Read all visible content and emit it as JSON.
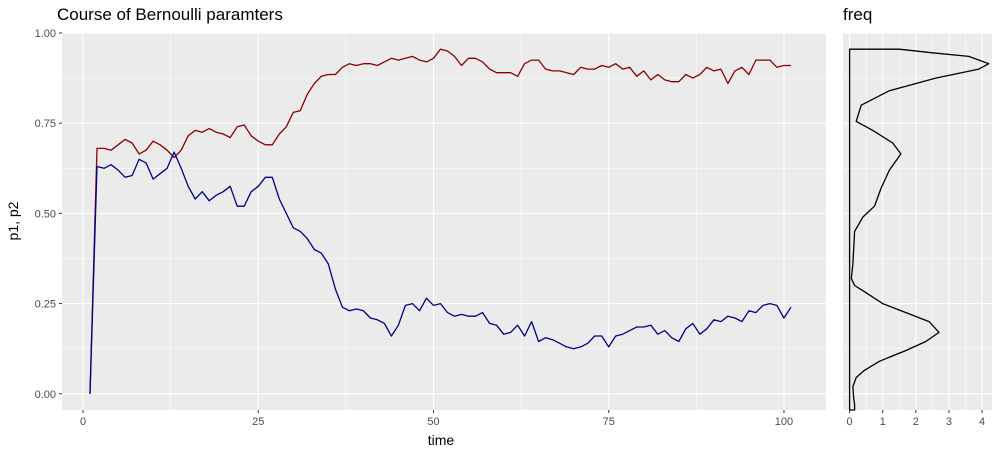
{
  "chart_data": [
    {
      "type": "line",
      "title": "Course of Bernoulli paramters",
      "xlabel": "time",
      "ylabel": "p1, p2",
      "xlim": [
        -3,
        106
      ],
      "ylim": [
        -0.045,
        1.0
      ],
      "x_ticks": [
        0,
        25,
        50,
        75,
        100
      ],
      "x_tick_labels": [
        "0",
        "25",
        "50",
        "75",
        "100"
      ],
      "y_ticks": [
        0,
        0.25,
        0.5,
        0.75,
        1.0
      ],
      "y_tick_labels": [
        "0.00",
        "0.25",
        "0.50",
        "0.75",
        "1.00"
      ],
      "grid": true,
      "x": [
        1,
        2,
        3,
        4,
        5,
        6,
        7,
        8,
        9,
        10,
        11,
        12,
        13,
        14,
        15,
        16,
        17,
        18,
        19,
        20,
        21,
        22,
        23,
        24,
        25,
        26,
        27,
        28,
        29,
        30,
        31,
        32,
        33,
        34,
        35,
        36,
        37,
        38,
        39,
        40,
        41,
        42,
        43,
        44,
        45,
        46,
        47,
        48,
        49,
        50,
        51,
        52,
        53,
        54,
        55,
        56,
        57,
        58,
        59,
        60,
        61,
        62,
        63,
        64,
        65,
        66,
        67,
        68,
        69,
        70,
        71,
        72,
        73,
        74,
        75,
        76,
        77,
        78,
        79,
        80,
        81,
        82,
        83,
        84,
        85,
        86,
        87,
        88,
        89,
        90,
        91,
        92,
        93,
        94,
        95,
        96,
        97,
        98,
        99,
        100,
        101
      ],
      "series": [
        {
          "color": "#8b0000",
          "values": [
            0.0,
            0.68,
            0.68,
            0.675,
            0.69,
            0.705,
            0.695,
            0.665,
            0.675,
            0.7,
            0.69,
            0.675,
            0.655,
            0.675,
            0.715,
            0.73,
            0.725,
            0.735,
            0.725,
            0.72,
            0.71,
            0.74,
            0.745,
            0.715,
            0.7,
            0.69,
            0.69,
            0.72,
            0.74,
            0.78,
            0.785,
            0.83,
            0.86,
            0.88,
            0.885,
            0.885,
            0.905,
            0.915,
            0.91,
            0.915,
            0.915,
            0.91,
            0.92,
            0.93,
            0.925,
            0.93,
            0.935,
            0.925,
            0.92,
            0.93,
            0.955,
            0.95,
            0.935,
            0.91,
            0.93,
            0.93,
            0.92,
            0.9,
            0.89,
            0.89,
            0.89,
            0.88,
            0.915,
            0.925,
            0.925,
            0.9,
            0.895,
            0.895,
            0.89,
            0.885,
            0.905,
            0.9,
            0.9,
            0.91,
            0.905,
            0.915,
            0.9,
            0.905,
            0.88,
            0.895,
            0.87,
            0.885,
            0.87,
            0.865,
            0.865,
            0.885,
            0.875,
            0.885,
            0.905,
            0.895,
            0.9,
            0.86,
            0.895,
            0.905,
            0.885,
            0.925,
            0.925,
            0.925,
            0.905,
            0.91,
            0.91
          ]
        },
        {
          "color": "#00008b",
          "values": [
            0.0,
            0.63,
            0.625,
            0.635,
            0.62,
            0.6,
            0.605,
            0.65,
            0.64,
            0.595,
            0.61,
            0.625,
            0.67,
            0.625,
            0.575,
            0.54,
            0.56,
            0.535,
            0.55,
            0.56,
            0.575,
            0.52,
            0.52,
            0.56,
            0.575,
            0.6,
            0.6,
            0.54,
            0.5,
            0.46,
            0.45,
            0.43,
            0.4,
            0.39,
            0.36,
            0.29,
            0.24,
            0.23,
            0.235,
            0.23,
            0.21,
            0.205,
            0.195,
            0.16,
            0.19,
            0.245,
            0.25,
            0.23,
            0.265,
            0.245,
            0.25,
            0.225,
            0.215,
            0.22,
            0.215,
            0.215,
            0.225,
            0.195,
            0.19,
            0.165,
            0.17,
            0.19,
            0.16,
            0.2,
            0.145,
            0.155,
            0.15,
            0.14,
            0.13,
            0.125,
            0.13,
            0.14,
            0.16,
            0.16,
            0.13,
            0.16,
            0.165,
            0.175,
            0.185,
            0.185,
            0.19,
            0.165,
            0.175,
            0.155,
            0.145,
            0.18,
            0.195,
            0.165,
            0.18,
            0.205,
            0.2,
            0.215,
            0.21,
            0.2,
            0.23,
            0.225,
            0.245,
            0.25,
            0.245,
            0.21,
            0.24
          ]
        }
      ]
    },
    {
      "type": "line",
      "title": "freq",
      "xlim": [
        -0.2,
        4.3
      ],
      "ylim": [
        -0.045,
        1.0
      ],
      "x_ticks": [
        0,
        1,
        2,
        3,
        4
      ],
      "x_tick_labels": [
        "0",
        "1",
        "2",
        "3",
        "4"
      ],
      "grid": true,
      "series": [
        {
          "color": "#000000",
          "points": [
            [
              0.0,
              -0.045
            ],
            [
              0.15,
              -0.045
            ],
            [
              0.15,
              -0.03
            ],
            [
              0.12,
              -0.01
            ],
            [
              0.1,
              0.02
            ],
            [
              0.2,
              0.045
            ],
            [
              0.45,
              0.065
            ],
            [
              0.9,
              0.09
            ],
            [
              1.7,
              0.12
            ],
            [
              2.3,
              0.145
            ],
            [
              2.7,
              0.17
            ],
            [
              2.4,
              0.2
            ],
            [
              1.7,
              0.225
            ],
            [
              1.0,
              0.25
            ],
            [
              0.5,
              0.28
            ],
            [
              0.15,
              0.3
            ],
            [
              0.05,
              0.32
            ],
            [
              0.1,
              0.36
            ],
            [
              0.15,
              0.45
            ],
            [
              0.4,
              0.49
            ],
            [
              0.75,
              0.52
            ],
            [
              0.95,
              0.57
            ],
            [
              1.2,
              0.62
            ],
            [
              1.55,
              0.665
            ],
            [
              1.3,
              0.695
            ],
            [
              0.7,
              0.73
            ],
            [
              0.2,
              0.755
            ],
            [
              0.35,
              0.8
            ],
            [
              1.2,
              0.84
            ],
            [
              2.6,
              0.875
            ],
            [
              3.9,
              0.9
            ],
            [
              4.2,
              0.915
            ],
            [
              3.6,
              0.935
            ],
            [
              2.5,
              0.945
            ],
            [
              1.5,
              0.955
            ],
            [
              0.0,
              0.955
            ],
            [
              0.0,
              -0.045
            ]
          ]
        }
      ]
    }
  ]
}
